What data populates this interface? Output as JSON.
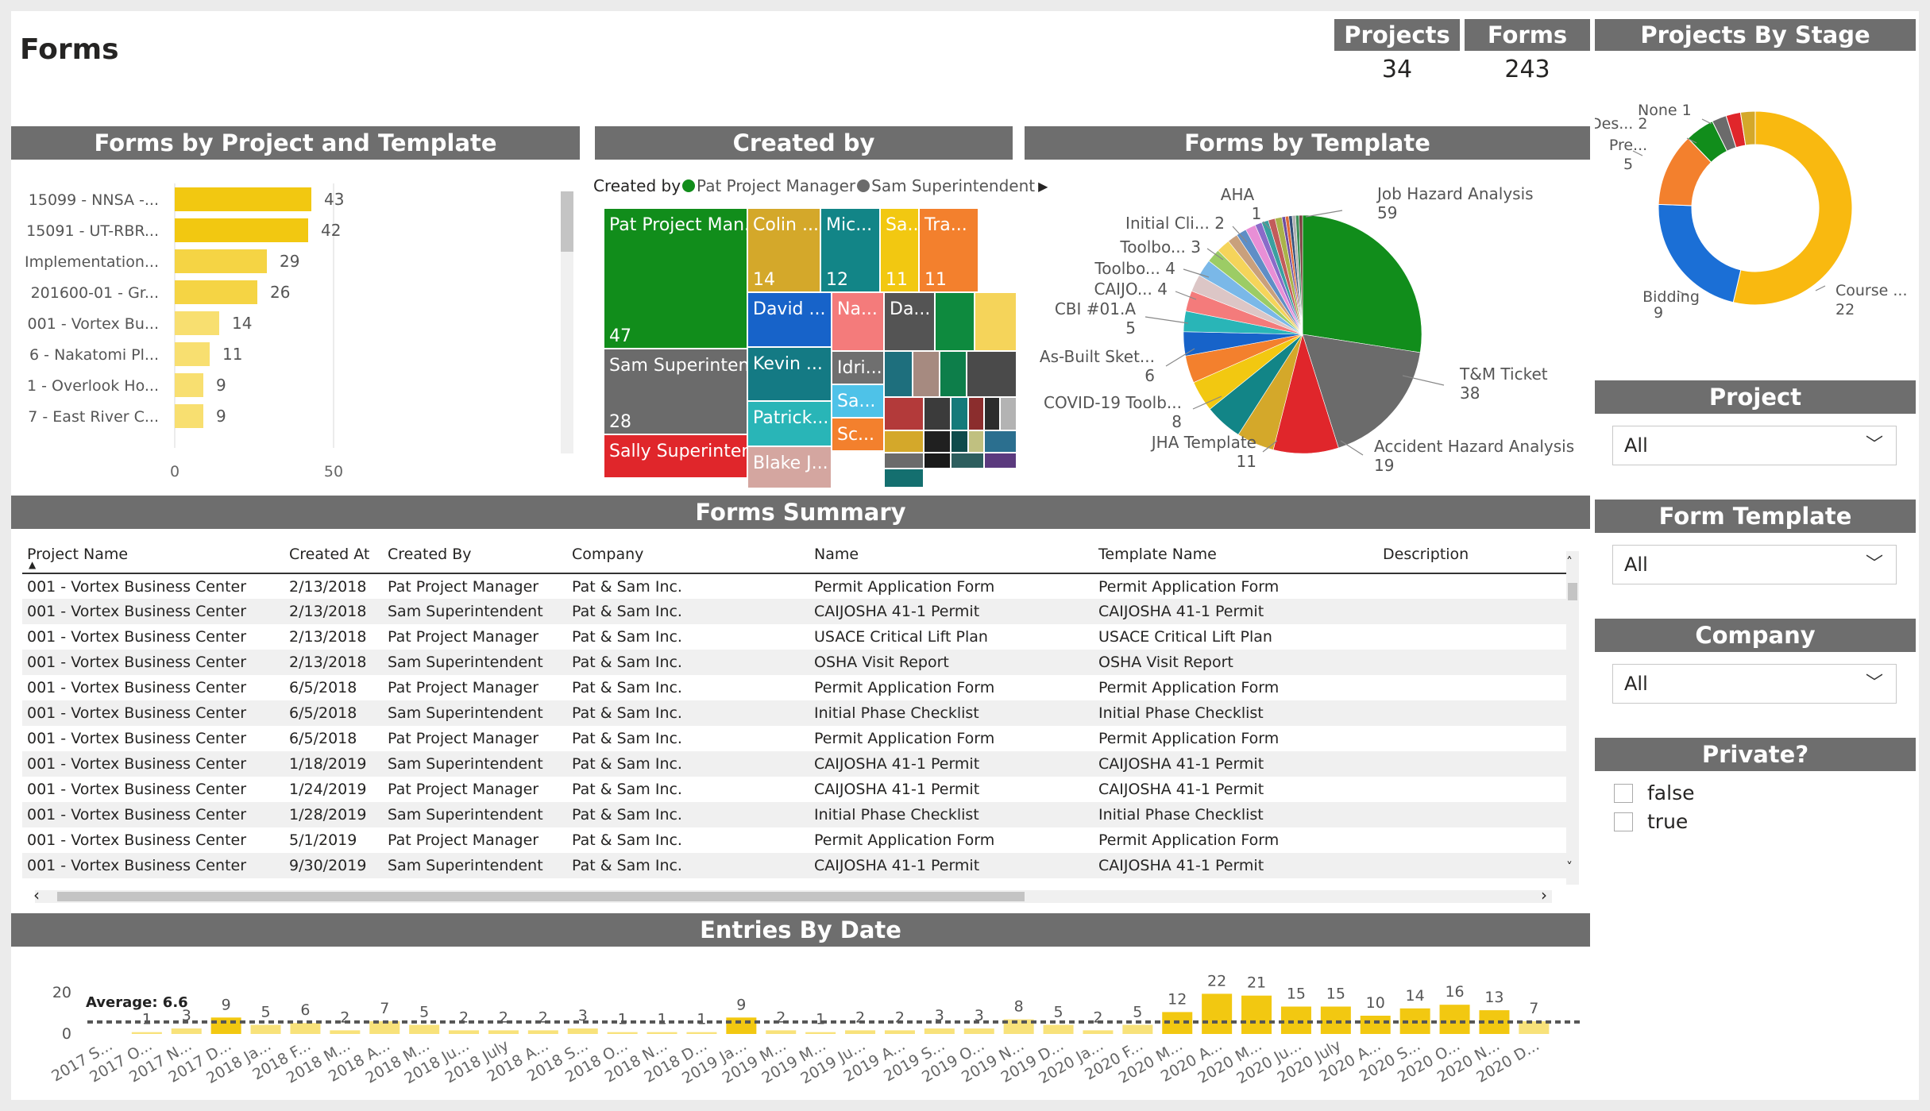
{
  "page_title": "Forms",
  "cards": {
    "projects": {
      "label": "Projects",
      "value": "34"
    },
    "forms": {
      "label": "Forms",
      "value": "243"
    }
  },
  "colors": {
    "header_bg": "#6e6e6e",
    "bar_yellow": "#f2c811",
    "accent_green": "#118d1b"
  },
  "bar_chart": {
    "title": "Forms by Project and Template",
    "axis_ticks": [
      "0",
      "50"
    ],
    "chart_data": {
      "type": "bar",
      "orientation": "horizontal",
      "categories": [
        "15099 - NNSA -...",
        "15091 - UT-RBR...",
        "Implementation...",
        "201600-01 - Gr...",
        "001 - Vortex Bu...",
        "6 - Nakatomi Pl...",
        "1 - Overlook Ho...",
        "7 - East River C..."
      ],
      "values": [
        43,
        42,
        29,
        26,
        14,
        11,
        9,
        9
      ],
      "xlim": [
        0,
        56
      ]
    }
  },
  "treemap": {
    "title": "Created by",
    "legend_title": "Created by",
    "legend_items": [
      {
        "label": "Pat Project Manager",
        "color": "#118d1b"
      },
      {
        "label": "Sam Superintendent",
        "color": "#6b6b6b"
      }
    ],
    "cells": [
      {
        "label": "Pat Project Man...",
        "value": "47",
        "color": "#118d1b"
      },
      {
        "label": "Sam Superinten...",
        "value": "28",
        "color": "#6b6b6b"
      },
      {
        "label": "Sally Superinten...",
        "value": "",
        "color": "#e0262b"
      },
      {
        "label": "Colin ...",
        "value": "14",
        "color": "#d4a82a"
      },
      {
        "label": "Mic...",
        "value": "12",
        "color": "#128587"
      },
      {
        "label": "Sa...",
        "value": "11",
        "color": "#f2c811"
      },
      {
        "label": "Tra...",
        "value": "11",
        "color": "#f3802d"
      },
      {
        "label": "David ...",
        "value": "",
        "color": "#1763c9"
      },
      {
        "label": "Na...",
        "value": "",
        "color": "#f47b7b"
      },
      {
        "label": "Da...",
        "value": "",
        "color": "#545454"
      },
      {
        "label": "",
        "value": "",
        "color": "#0e8a3e"
      },
      {
        "label": "",
        "value": "",
        "color": "#f5d45a"
      },
      {
        "label": "Kevin ...",
        "value": "",
        "color": "#147a84"
      },
      {
        "label": "Patrick...",
        "value": "",
        "color": "#29b5b7"
      },
      {
        "label": "Blake J...",
        "value": "",
        "color": "#d4a6a0"
      },
      {
        "label": "Idri...",
        "value": "",
        "color": "#6f6f6f"
      },
      {
        "label": "Sa...",
        "value": "",
        "color": "#4ec2e8"
      },
      {
        "label": "Sc...",
        "value": "",
        "color": "#f3802d"
      }
    ]
  },
  "pie": {
    "title": "Forms by Template",
    "chart_data": {
      "type": "pie",
      "slices": [
        {
          "label": "Job Hazard Analysis",
          "value": 59,
          "color": "#118d1b"
        },
        {
          "label": "T&M Ticket",
          "value": 38,
          "color": "#6b6b6b"
        },
        {
          "label": "Accident Hazard Analysis",
          "value": 19,
          "color": "#e0262b"
        },
        {
          "label": "",
          "value": 11,
          "color": "#d4a82a"
        },
        {
          "label": "JHA Template",
          "value": 11,
          "color": "#128587"
        },
        {
          "label": "",
          "value": 9,
          "color": "#f2c811"
        },
        {
          "label": "COVID-19 Toolb...",
          "value": 8,
          "color": "#f3802d"
        },
        {
          "label": "",
          "value": 7,
          "color": "#1763c9"
        },
        {
          "label": "As-Built Sket...",
          "value": 6,
          "color": "#29b5b7"
        },
        {
          "label": "",
          "value": 6,
          "color": "#f47b7b"
        },
        {
          "label": "CBI #01.A",
          "value": 5,
          "color": "#dcc6c6"
        },
        {
          "label": "",
          "value": 5,
          "color": "#7ab8e8"
        },
        {
          "label": "CAIJO...",
          "value": 4,
          "color": "#9ccc65"
        },
        {
          "label": "Toolbo...",
          "value": 4,
          "color": "#f5d45a"
        },
        {
          "label": "",
          "value": 3,
          "color": "#c9a07c"
        },
        {
          "label": "Toolbo...",
          "value": 3,
          "color": "#5f8ec6"
        },
        {
          "label": "",
          "value": 3,
          "color": "#e88fd6"
        },
        {
          "label": "",
          "value": 2,
          "color": "#8a6bc9"
        },
        {
          "label": "Initial Cli...",
          "value": 2,
          "color": "#3aa0a0"
        },
        {
          "label": "",
          "value": 2,
          "color": "#c25b5b"
        },
        {
          "label": "",
          "value": 2,
          "color": "#aab34a"
        },
        {
          "label": "",
          "value": 1,
          "color": "#6d4c9f"
        },
        {
          "label": "",
          "value": 1,
          "color": "#e06b3a"
        },
        {
          "label": "AHA",
          "value": 1,
          "color": "#334f7a"
        },
        {
          "label": "",
          "value": 1,
          "color": "#b0b0b0"
        },
        {
          "label": "",
          "value": 1,
          "color": "#3c8f58"
        },
        {
          "label": "",
          "value": 1,
          "color": "#7a3d3d"
        }
      ]
    },
    "labels": [
      {
        "text": "Job Hazard Analysis",
        "value": "59"
      },
      {
        "text": "T&M Ticket",
        "value": "38"
      },
      {
        "text": "Accident Hazard Analysis",
        "value": "19"
      },
      {
        "text": "JHA Template",
        "value": "11"
      },
      {
        "text": "COVID-19 Toolb...",
        "value": "8"
      },
      {
        "text": "As-Built Sket...",
        "value": "6"
      },
      {
        "text": "CBI #01.A",
        "value": "5"
      },
      {
        "text": "CAIJO...",
        "value": "4"
      },
      {
        "text": "Toolbo...",
        "value": "4"
      },
      {
        "text": "Toolbo...",
        "value": "3"
      },
      {
        "text": "Initial Cli...",
        "value": "2"
      },
      {
        "text": "AHA",
        "value": "1"
      }
    ]
  },
  "donut": {
    "title": "Projects By Stage",
    "chart_data": {
      "type": "pie",
      "donut": true,
      "slices": [
        {
          "label": "Course ...",
          "value": 22,
          "color": "#f9b910"
        },
        {
          "label": "Bidding",
          "value": 9,
          "color": "#1b6fd6"
        },
        {
          "label": "Pre...",
          "value": 5,
          "color": "#f3802d"
        },
        {
          "label": "Des...",
          "value": 2,
          "color": "#118d1b"
        },
        {
          "label": "",
          "value": 1,
          "color": "#6b6b6b"
        },
        {
          "label": "None",
          "value": 1,
          "color": "#e0262b"
        },
        {
          "label": "",
          "value": 1,
          "color": "#d4a82a"
        }
      ]
    },
    "labels": [
      {
        "text": "None",
        "value": "1"
      },
      {
        "text": "Des...",
        "value": "2"
      },
      {
        "text": "Pre...",
        "value": "5"
      },
      {
        "text": "Bidding",
        "value": "9"
      },
      {
        "text": "Course ...",
        "value": "22"
      }
    ]
  },
  "filters": {
    "project": {
      "title": "Project",
      "value": "All"
    },
    "form_template": {
      "title": "Form Template",
      "value": "All"
    },
    "company": {
      "title": "Company",
      "value": "All"
    },
    "private": {
      "title": "Private?",
      "options": [
        "false",
        "true"
      ]
    }
  },
  "summary": {
    "title": "Forms Summary",
    "columns": [
      "Project Name",
      "Created At",
      "Created By",
      "Company",
      "Name",
      "Template Name",
      "Description"
    ],
    "rows": [
      [
        "001 - Vortex Business Center",
        "2/13/2018",
        "Pat Project Manager",
        "Pat & Sam Inc.",
        "Permit Application Form",
        "Permit Application Form",
        ""
      ],
      [
        "001 - Vortex Business Center",
        "2/13/2018",
        "Sam Superintendent",
        "Pat & Sam Inc.",
        "CAIJOSHA 41-1 Permit",
        "CAIJOSHA 41-1 Permit",
        ""
      ],
      [
        "001 - Vortex Business Center",
        "2/13/2018",
        "Pat Project Manager",
        "Pat & Sam Inc.",
        "USACE Critical Lift Plan",
        "USACE Critical Lift Plan",
        ""
      ],
      [
        "001 - Vortex Business Center",
        "2/13/2018",
        "Sam Superintendent",
        "Pat & Sam Inc.",
        "OSHA Visit Report",
        "OSHA Visit Report",
        ""
      ],
      [
        "001 - Vortex Business Center",
        "6/5/2018",
        "Pat Project Manager",
        "Pat & Sam Inc.",
        "Permit Application Form",
        "Permit Application Form",
        ""
      ],
      [
        "001 - Vortex Business Center",
        "6/5/2018",
        "Sam Superintendent",
        "Pat & Sam Inc.",
        "Initial Phase Checklist",
        "Initial Phase Checklist",
        ""
      ],
      [
        "001 - Vortex Business Center",
        "6/5/2018",
        "Pat Project Manager",
        "Pat & Sam Inc.",
        "Permit Application Form",
        "Permit Application Form",
        ""
      ],
      [
        "001 - Vortex Business Center",
        "1/18/2019",
        "Sam Superintendent",
        "Pat & Sam Inc.",
        "CAIJOSHA 41-1 Permit",
        "CAIJOSHA 41-1 Permit",
        ""
      ],
      [
        "001 - Vortex Business Center",
        "1/24/2019",
        "Pat Project Manager",
        "Pat & Sam Inc.",
        "CAIJOSHA 41-1 Permit",
        "CAIJOSHA 41-1 Permit",
        ""
      ],
      [
        "001 - Vortex Business Center",
        "1/28/2019",
        "Sam Superintendent",
        "Pat & Sam Inc.",
        "Initial Phase Checklist",
        "Initial Phase Checklist",
        ""
      ],
      [
        "001 - Vortex Business Center",
        "5/1/2019",
        "Pat Project Manager",
        "Pat & Sam Inc.",
        "Permit Application Form",
        "Permit Application Form",
        ""
      ],
      [
        "001 - Vortex Business Center",
        "9/30/2019",
        "Sam Superintendent",
        "Pat & Sam Inc.",
        "CAIJOSHA 41-1 Permit",
        "CAIJOSHA 41-1 Permit",
        ""
      ]
    ]
  },
  "entries": {
    "title": "Entries By Date",
    "average_label": "Average: 6.6",
    "y_ticks": [
      "20",
      "0"
    ],
    "chart_data": {
      "type": "bar",
      "average": 6.6,
      "ylim": [
        0,
        25
      ],
      "categories": [
        "2017 S...",
        "2017 O...",
        "2017 N...",
        "2017 D...",
        "2018 Ja...",
        "2018 F...",
        "2018 M...",
        "2018 A...",
        "2018 M...",
        "2018 Ju...",
        "2018 July",
        "2018 A...",
        "2018 S...",
        "2018 O...",
        "2018 N...",
        "2018 D...",
        "2019 Ja...",
        "2019 M...",
        "2019 M...",
        "2019 Ju...",
        "2019 A...",
        "2019 S...",
        "2019 O...",
        "2019 N...",
        "2019 D...",
        "2020 Ja...",
        "2020 F...",
        "2020 M...",
        "2020 A...",
        "2020 M...",
        "2020 Ju...",
        "2020 July",
        "2020 A...",
        "2020 S...",
        "2020 O...",
        "2020 N...",
        "2020 D..."
      ],
      "values": [
        null,
        1,
        3,
        9,
        5,
        6,
        2,
        7,
        5,
        2,
        2,
        2,
        3,
        1,
        1,
        1,
        9,
        2,
        1,
        2,
        2,
        3,
        3,
        8,
        5,
        2,
        5,
        12,
        22,
        21,
        15,
        15,
        10,
        14,
        16,
        13,
        7
      ]
    }
  }
}
